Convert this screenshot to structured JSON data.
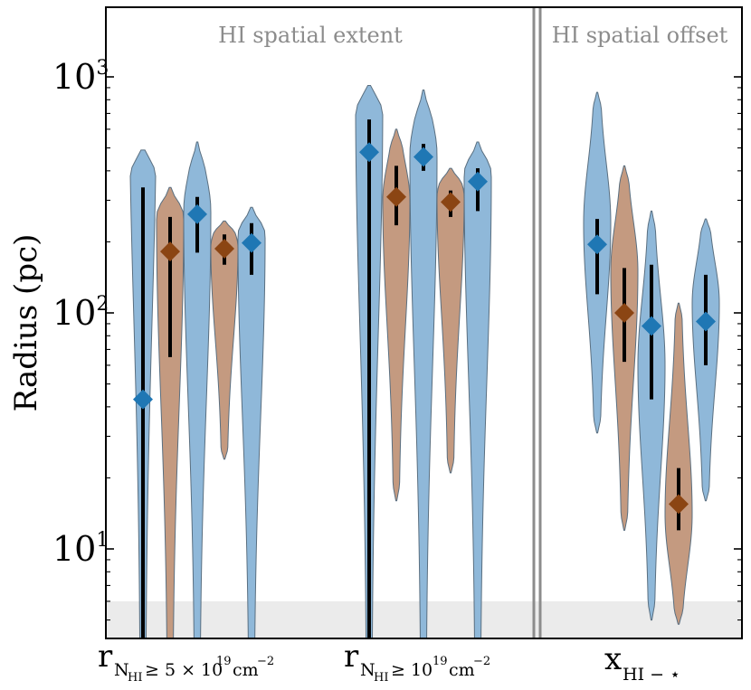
{
  "chart_data": {
    "type": "violin",
    "ylabel": "Radius (pc)",
    "yscale": "log",
    "ylim": [
      4,
      2000
    ],
    "y_tick_labels": [
      {
        "value": 10,
        "base": "10",
        "exp": "1"
      },
      {
        "value": 100,
        "base": "10",
        "exp": "2"
      },
      {
        "value": 1000,
        "base": "10",
        "exp": "3"
      }
    ],
    "panel_labels": [
      "HI spatial extent",
      "HI spatial offset"
    ],
    "shaded_region": {
      "y_from": 4,
      "y_to": 6
    },
    "colors": {
      "blue_fill": "#8fb8d9",
      "blue_marker": "#1f77b4",
      "brown_fill": "#c49a80",
      "brown_marker": "#8b4513",
      "panel_text": "#8c8c8c",
      "divider": "#8c8c8c",
      "shade": "#ebebeb"
    },
    "categories": [
      {
        "id": "r5e19",
        "main": "r",
        "sub": "N",
        "subsub": "HI",
        "rest": "≥ 5 × 10",
        "exp": "19",
        "unit": "cm",
        "unit_exp": "−2"
      },
      {
        "id": "r1e19",
        "main": "r",
        "sub": "N",
        "subsub": "HI",
        "rest": "≥ 10",
        "exp": "19",
        "unit": "cm",
        "unit_exp": "−2"
      },
      {
        "id": "xoff",
        "main": "x",
        "sub": "HI − ⋆"
      }
    ],
    "violins": [
      {
        "group": "r5e19",
        "color": "blue",
        "median": 43,
        "lo": 3,
        "hi": 340,
        "min": 3,
        "max": 490,
        "peak": 1000
      },
      {
        "group": "r5e19",
        "color": "brown",
        "median": 182,
        "lo": 65,
        "hi": 255,
        "min": 3,
        "max": 340,
        "peak": 250
      },
      {
        "group": "r5e19",
        "color": "blue",
        "median": 262,
        "lo": 180,
        "hi": 310,
        "min": 3,
        "max": 530,
        "peak": 270
      },
      {
        "group": "r5e19",
        "color": "brown",
        "median": 187,
        "lo": 160,
        "hi": 215,
        "min": 24,
        "max": 245,
        "peak": 190
      },
      {
        "group": "r5e19",
        "color": "blue",
        "median": 198,
        "lo": 145,
        "hi": 240,
        "min": 3,
        "max": 280,
        "peak": 210
      },
      {
        "group": "r1e19",
        "color": "blue",
        "median": 480,
        "lo": 3,
        "hi": 660,
        "min": 3,
        "max": 920,
        "peak": 800
      },
      {
        "group": "r1e19",
        "color": "brown",
        "median": 310,
        "lo": 235,
        "hi": 420,
        "min": 16,
        "max": 600,
        "peak": 300
      },
      {
        "group": "r1e19",
        "color": "blue",
        "median": 458,
        "lo": 400,
        "hi": 520,
        "min": 3,
        "max": 880,
        "peak": 470
      },
      {
        "group": "r1e19",
        "color": "brown",
        "median": 295,
        "lo": 255,
        "hi": 330,
        "min": 21,
        "max": 410,
        "peak": 310
      },
      {
        "group": "r1e19",
        "color": "blue",
        "median": 360,
        "lo": 270,
        "hi": 410,
        "min": 3,
        "max": 530,
        "peak": 380
      },
      {
        "group": "xoff",
        "color": "blue",
        "median": 195,
        "lo": 120,
        "hi": 250,
        "min": 31,
        "max": 860,
        "peak": 240
      },
      {
        "group": "xoff",
        "color": "brown",
        "median": 100,
        "lo": 62,
        "hi": 155,
        "min": 12,
        "max": 420,
        "peak": 150
      },
      {
        "group": "xoff",
        "color": "blue",
        "median": 88,
        "lo": 43,
        "hi": 160,
        "min": 5,
        "max": 270,
        "peak": 60
      },
      {
        "group": "xoff",
        "color": "brown",
        "median": 15.5,
        "lo": 12,
        "hi": 22,
        "min": 4.8,
        "max": 110,
        "peak": 14
      },
      {
        "group": "xoff",
        "color": "blue",
        "median": 92,
        "lo": 60,
        "hi": 145,
        "min": 16,
        "max": 250,
        "peak": 110
      }
    ]
  }
}
